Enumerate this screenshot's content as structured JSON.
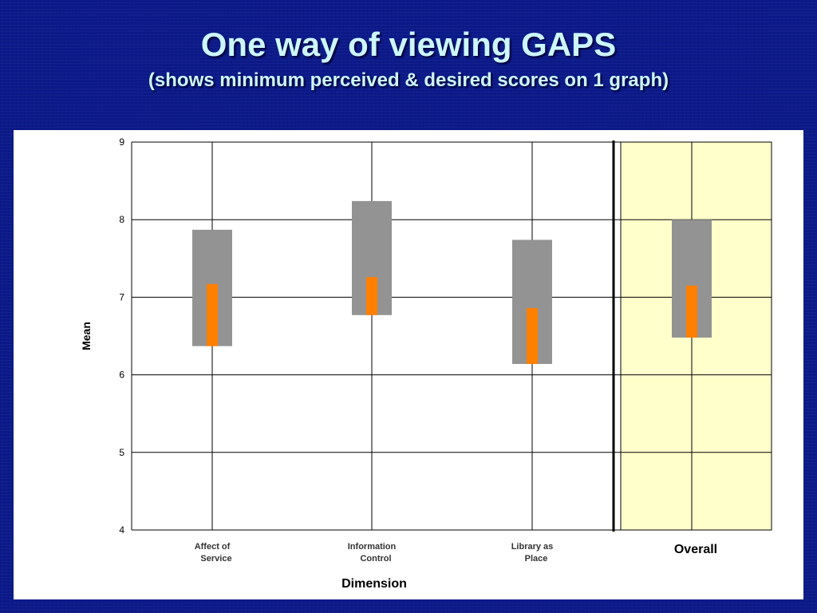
{
  "slide": {
    "title": "One way of viewing GAPS",
    "subtitle": "(shows minimum perceived & desired scores on 1 graph)"
  },
  "colors": {
    "background": "#0c1a8a",
    "title_text": "#ccf6ff",
    "range_bar": "#939393",
    "perceived_bar": "#ff7f00",
    "overall_highlight": "#ffffcc",
    "grid": "#000000"
  },
  "chart_data": {
    "type": "bar",
    "categories": [
      {
        "line1": "Affect of",
        "line2": "Service"
      },
      {
        "line1": "Information",
        "line2": "Control"
      },
      {
        "line1": "Library as",
        "line2": "Place"
      }
    ],
    "overall_label": "Overall",
    "xlabel": "Dimension",
    "ylabel": "Mean",
    "ylim": [
      4,
      9
    ],
    "yticks": [
      "4",
      "5",
      "6",
      "7",
      "8",
      "9"
    ],
    "grid": true,
    "series": [
      {
        "kind": "min-to-desired range",
        "values": [
          [
            6.37,
            7.87
          ],
          [
            6.77,
            8.24
          ],
          [
            6.14,
            7.74
          ],
          [
            6.48,
            8.0
          ]
        ]
      },
      {
        "kind": "min-to-perceived",
        "values": [
          [
            6.37,
            7.17
          ],
          [
            6.77,
            7.26
          ],
          [
            6.14,
            6.86
          ],
          [
            6.48,
            7.15
          ]
        ]
      }
    ]
  }
}
